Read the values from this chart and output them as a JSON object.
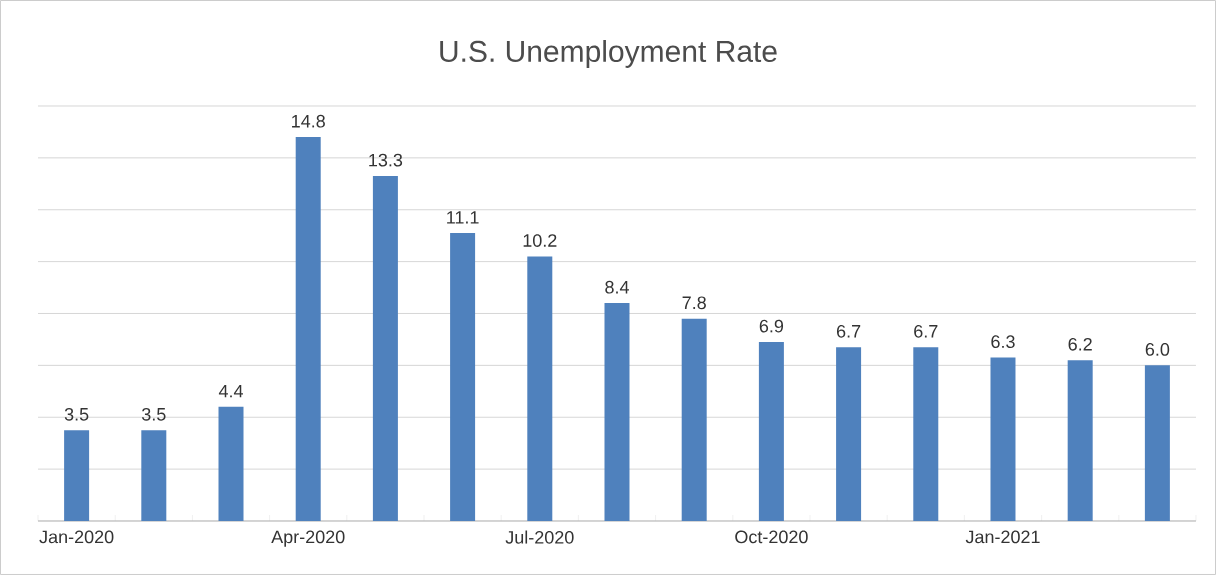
{
  "chart_data": {
    "type": "bar",
    "title": "U.S. Unemployment Rate",
    "categories": [
      "Jan-2020",
      null,
      null,
      "Apr-2020",
      null,
      null,
      "Jul-2020",
      null,
      null,
      "Oct-2020",
      null,
      null,
      "Jan-2021",
      null,
      null
    ],
    "values": [
      3.5,
      3.5,
      4.4,
      14.8,
      13.3,
      11.1,
      10.2,
      8.4,
      7.8,
      6.9,
      6.7,
      6.7,
      6.3,
      6.2,
      6.0
    ],
    "color": "#4f81bd",
    "ylim": [
      0,
      16
    ],
    "yticks": [
      {
        "value": 0,
        "label": null
      },
      {
        "value": 2,
        "label": null
      },
      {
        "value": 4,
        "label": null
      },
      {
        "value": 6,
        "label": null
      },
      {
        "value": 8,
        "label": null
      },
      {
        "value": 10,
        "label": null
      },
      {
        "value": 12,
        "label": null
      },
      {
        "value": 14,
        "label": null
      },
      {
        "value": 16,
        "label": null
      }
    ],
    "value_labels": [
      "3.5",
      "3.5",
      "4.4",
      "14.8",
      "13.3",
      "11.1",
      "10.2",
      "8.4",
      "7.8",
      "6.9",
      "6.7",
      "6.7",
      "6.3",
      "6.2",
      "6.0"
    ],
    "grid": "y",
    "tick_labels": "x"
  }
}
